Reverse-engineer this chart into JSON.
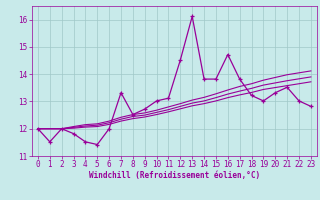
{
  "xlabel": "Windchill (Refroidissement éolien,°C)",
  "bg_color": "#c8eaea",
  "line_color": "#990099",
  "grid_color": "#a0c8c8",
  "x_data": [
    0,
    1,
    2,
    3,
    4,
    5,
    6,
    7,
    8,
    9,
    10,
    11,
    12,
    13,
    14,
    15,
    16,
    17,
    18,
    19,
    20,
    21,
    22,
    23
  ],
  "y_main": [
    12.0,
    11.52,
    12.0,
    11.82,
    11.52,
    11.42,
    12.0,
    13.32,
    12.52,
    12.72,
    13.02,
    13.12,
    14.52,
    16.12,
    13.82,
    13.82,
    14.72,
    13.82,
    13.22,
    13.02,
    13.32,
    13.52,
    13.02,
    12.82
  ],
  "y_upper": [
    12.0,
    12.0,
    12.0,
    12.08,
    12.15,
    12.18,
    12.28,
    12.42,
    12.52,
    12.58,
    12.68,
    12.8,
    12.92,
    13.05,
    13.15,
    13.28,
    13.42,
    13.55,
    13.65,
    13.78,
    13.88,
    13.98,
    14.05,
    14.12
  ],
  "y_mid": [
    12.0,
    12.0,
    12.0,
    12.05,
    12.1,
    12.13,
    12.22,
    12.35,
    12.45,
    12.5,
    12.6,
    12.7,
    12.82,
    12.94,
    13.02,
    13.14,
    13.27,
    13.38,
    13.48,
    13.6,
    13.68,
    13.76,
    13.83,
    13.9
  ],
  "y_lower": [
    12.0,
    12.0,
    12.0,
    12.02,
    12.06,
    12.08,
    12.16,
    12.28,
    12.37,
    12.43,
    12.52,
    12.62,
    12.73,
    12.84,
    12.92,
    13.02,
    13.14,
    13.24,
    13.33,
    13.44,
    13.51,
    13.58,
    13.65,
    13.72
  ],
  "xlim": [
    -0.5,
    23.5
  ],
  "ylim": [
    11.0,
    16.5
  ],
  "xticks": [
    0,
    1,
    2,
    3,
    4,
    5,
    6,
    7,
    8,
    9,
    10,
    11,
    12,
    13,
    14,
    15,
    16,
    17,
    18,
    19,
    20,
    21,
    22,
    23
  ],
  "yticks": [
    11,
    12,
    13,
    14,
    15,
    16
  ],
  "tick_fontsize": 5.5,
  "xlabel_fontsize": 5.5
}
